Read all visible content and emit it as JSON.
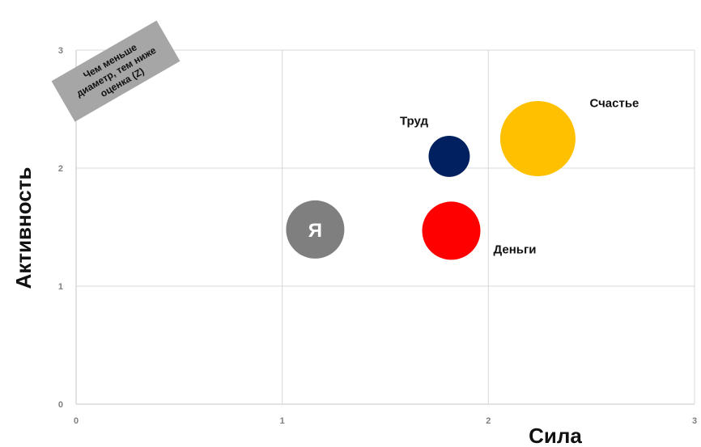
{
  "chart_data": {
    "type": "scatter",
    "xlabel": "Сила",
    "ylabel": "Активность",
    "xlim": [
      0,
      3
    ],
    "ylim": [
      0,
      3
    ],
    "x_ticks": [
      "0",
      "1",
      "2",
      "3"
    ],
    "y_ticks": [
      "0",
      "1",
      "2",
      "3"
    ],
    "grid": true,
    "points": [
      {
        "label": "Я",
        "x": 1.16,
        "y": 1.48,
        "size": 0.9,
        "color": "#7f7f7f",
        "label_inside": true
      },
      {
        "label": "Деньги",
        "x": 1.82,
        "y": 1.47,
        "size": 0.9,
        "color": "#ff0000",
        "label_inside": false
      },
      {
        "label": "Труд",
        "x": 1.81,
        "y": 2.1,
        "size": 0.45,
        "color": "#002060",
        "label_inside": false
      },
      {
        "label": "Счастье",
        "x": 2.24,
        "y": 2.25,
        "size": 1.5,
        "color": "#ffc000",
        "label_inside": false
      }
    ],
    "annotation": {
      "lines": [
        "Чем меньше",
        "диаметр, тем ниже",
        "оценка (Z)"
      ],
      "color": "#a6a6a6"
    }
  }
}
